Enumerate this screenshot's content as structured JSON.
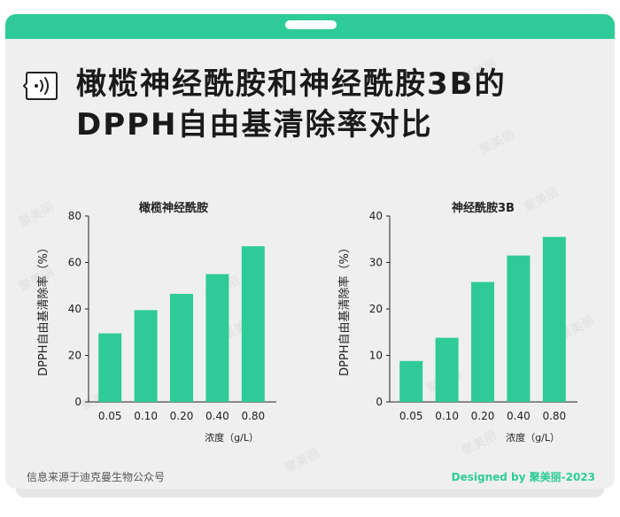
{
  "header": {
    "title_line1": "橄榄神经酰胺和神经酰胺3B的",
    "title_line2": "DPPH自由基清除率对比"
  },
  "footer": {
    "source": "信息来源于迪克曼生物公众号",
    "credit": "Designed by 聚美丽-2023"
  },
  "watermark": "聚美丽",
  "colors": {
    "accent": "#2ecb98",
    "bar": "#2ecb98"
  },
  "icons": {
    "title_icon": "speaker-bubble-icon"
  },
  "chart_data": [
    {
      "type": "bar",
      "title": "橄榄神经酰胺",
      "xlabel": "浓度（g/L）",
      "ylabel": "DPPH自由基清除率（%）",
      "categories": [
        "0.05",
        "0.10",
        "0.20",
        "0.40",
        "0.80"
      ],
      "values": [
        29.5,
        39.5,
        46.5,
        55,
        67
      ],
      "yticks": [
        0,
        20,
        40,
        60,
        80
      ],
      "ylim": [
        0,
        80
      ]
    },
    {
      "type": "bar",
      "title": "神经酰胺3B",
      "xlabel": "浓度（g/L）",
      "ylabel": "DPPH自由基清除率（%）",
      "categories": [
        "0.05",
        "0.10",
        "0.20",
        "0.40",
        "0.80"
      ],
      "values": [
        8.8,
        13.8,
        25.8,
        31.5,
        35.5
      ],
      "yticks": [
        0,
        10,
        20,
        30,
        40
      ],
      "ylim": [
        0,
        40
      ]
    }
  ]
}
